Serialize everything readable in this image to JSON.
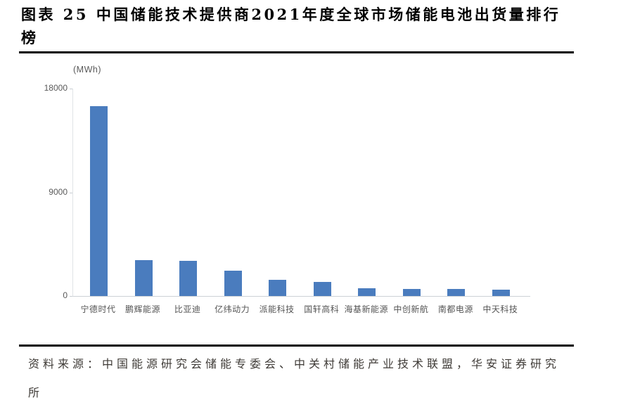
{
  "header": {
    "figure_label_lines": [
      "图表 25 中国储能技术提供商2021年度全球市场储能电池出货量排行",
      "榜"
    ]
  },
  "chart_data": {
    "type": "bar",
    "title": "中国储能技术提供商2021年度全球市场储能电池出货量排行榜",
    "unit_label": "(MWh)",
    "categories": [
      "宁德时代",
      "鹏辉能源",
      "比亚迪",
      "亿纬动力",
      "派能科技",
      "国轩高科",
      "海基新能源",
      "中创新航",
      "南都电源",
      "中天科技"
    ],
    "values": [
      16500,
      3100,
      3050,
      2200,
      1400,
      1250,
      650,
      620,
      580,
      570
    ],
    "xlabel": "",
    "ylabel": "(MWh)",
    "ylim": [
      0,
      18000
    ],
    "y_ticks": [
      18000,
      9000,
      0
    ],
    "grid": false,
    "legend": false,
    "bar_color": "#4a7cbe",
    "axis_color": "#ccd1d6",
    "tick_text_color": "#595959"
  },
  "footer": {
    "source_lines": [
      "资料来源：中国能源研究会储能专委会、中关村储能产业技术联盟，华安证券研究",
      "所"
    ]
  }
}
